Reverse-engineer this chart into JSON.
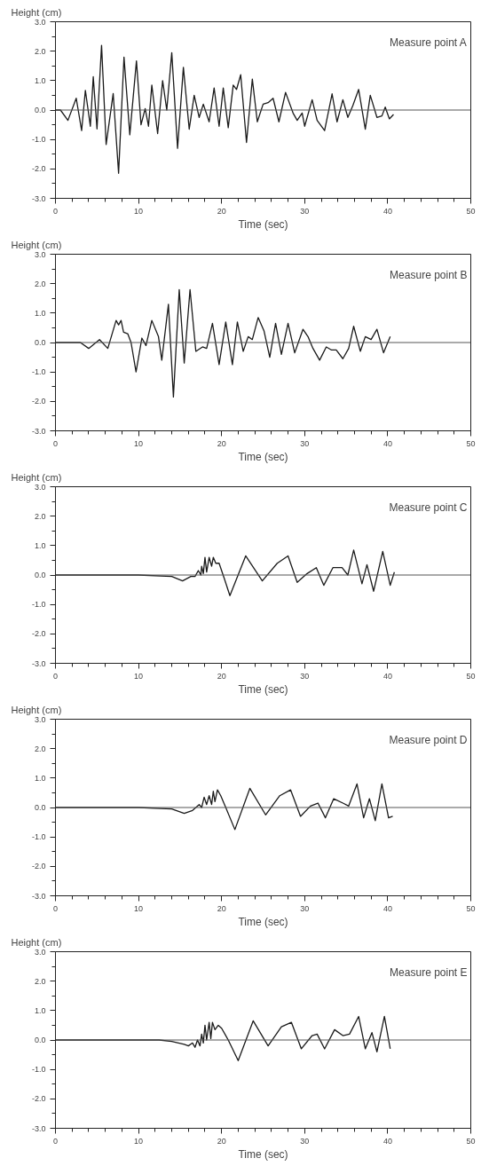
{
  "chart_data": [
    {
      "type": "line",
      "title": "Measure point A",
      "xlabel": "Time (sec)",
      "ylabel": "Height (cm)",
      "xlim": [
        0,
        50
      ],
      "xticks": [
        0,
        10,
        20,
        30,
        40,
        50
      ],
      "ylim": [
        -3,
        3
      ],
      "yticks": [
        {
          "value": -3,
          "label": "-3.0"
        },
        {
          "value": -2,
          "label": "-2.0"
        },
        {
          "value": -1,
          "label": "-1.0"
        },
        {
          "value": 0,
          "label": "0.0"
        },
        {
          "value": 1,
          "label": "1.0"
        },
        {
          "value": 2,
          "label": "2.0"
        },
        {
          "value": 3,
          "label": "3.0"
        }
      ],
      "grid": false,
      "ref_lines": [
        {
          "axis": "y",
          "value": 0,
          "color": "#555555"
        }
      ],
      "series": [
        {
          "color": "#1a1a1a",
          "x": [
            0,
            0.6,
            1.5,
            2.5,
            3.15,
            3.6,
            4.2,
            4.55,
            5.0,
            5.55,
            6.1,
            6.95,
            7.6,
            8.25,
            8.95,
            9.75,
            10.3,
            10.8,
            11.2,
            11.6,
            12.3,
            12.9,
            13.4,
            14.0,
            14.7,
            15.4,
            16.1,
            16.7,
            17.3,
            17.8,
            18.5,
            19.1,
            19.7,
            20.2,
            20.8,
            21.4,
            21.8,
            22.3,
            23.0,
            23.7,
            24.3,
            25.0,
            25.6,
            26.2,
            26.9,
            27.7,
            28.6,
            29.1,
            29.7,
            30.0,
            30.9,
            31.5,
            32.4,
            33.3,
            33.9,
            34.6,
            35.2,
            35.8,
            36.5,
            37.3,
            37.9,
            38.7,
            39.3,
            39.7,
            40.2,
            40.7
          ],
          "values": [
            0,
            0,
            -0.35,
            0.4,
            -0.7,
            0.67,
            -0.55,
            1.13,
            -0.64,
            2.2,
            -1.17,
            0.56,
            -2.15,
            1.8,
            -0.84,
            1.67,
            -0.5,
            0.05,
            -0.55,
            0.85,
            -0.8,
            1.0,
            0.0,
            1.95,
            -1.3,
            1.45,
            -0.65,
            0.5,
            -0.25,
            0.2,
            -0.4,
            0.75,
            -0.55,
            0.75,
            -0.6,
            0.85,
            0.7,
            1.2,
            -1.1,
            1.05,
            -0.4,
            0.2,
            0.25,
            0.4,
            -0.4,
            0.6,
            -0.1,
            -0.35,
            -0.1,
            -0.55,
            0.35,
            -0.35,
            -0.7,
            0.55,
            -0.4,
            0.35,
            -0.25,
            0.15,
            0.7,
            -0.65,
            0.5,
            -0.25,
            -0.2,
            0.1,
            -0.3,
            -0.15
          ]
        }
      ]
    },
    {
      "type": "line",
      "title": "Measure point B",
      "xlabel": "Time (sec)",
      "ylabel": "Height (cm)",
      "xlim": [
        0,
        50
      ],
      "xticks": [
        0,
        10,
        20,
        30,
        40,
        50
      ],
      "ylim": [
        -3,
        3
      ],
      "yticks": [
        {
          "value": -3,
          "label": "-3.0"
        },
        {
          "value": -2,
          "label": "-2.0"
        },
        {
          "value": -1,
          "label": "-1.0"
        },
        {
          "value": 0,
          "label": "0.0"
        },
        {
          "value": 1,
          "label": "1.0"
        },
        {
          "value": 2,
          "label": "2.0"
        },
        {
          "value": 3,
          "label": "3.0"
        }
      ],
      "grid": false,
      "ref_lines": [
        {
          "axis": "y",
          "value": 0,
          "color": "#555555"
        }
      ],
      "series": [
        {
          "color": "#1a1a1a",
          "x": [
            0,
            3,
            4.0,
            5.3,
            6.3,
            7.3,
            7.6,
            7.9,
            8.2,
            8.7,
            9.1,
            9.7,
            10.4,
            10.9,
            11.6,
            12.4,
            12.8,
            13.6,
            14.2,
            14.9,
            15.5,
            16.2,
            16.9,
            17.7,
            18.2,
            18.9,
            19.7,
            20.5,
            21.3,
            21.9,
            22.6,
            23.2,
            23.7,
            24.4,
            25.1,
            25.8,
            26.5,
            27.2,
            28.0,
            28.8,
            29.8,
            30.4,
            31.0,
            31.8,
            32.6,
            33.2,
            33.8,
            34.6,
            35.3,
            35.9,
            36.7,
            37.3,
            38.0,
            38.7,
            39.5,
            40.3
          ],
          "values": [
            0,
            0,
            -0.2,
            0.1,
            -0.2,
            0.75,
            0.6,
            0.75,
            0.35,
            0.3,
            0.0,
            -1.0,
            0.15,
            -0.1,
            0.75,
            0.2,
            -0.6,
            1.3,
            -1.85,
            1.8,
            -0.7,
            1.8,
            -0.3,
            -0.15,
            -0.2,
            0.65,
            -0.75,
            0.7,
            -0.75,
            0.7,
            -0.3,
            0.2,
            0.1,
            0.85,
            0.4,
            -0.5,
            0.65,
            -0.4,
            0.65,
            -0.35,
            0.45,
            0.2,
            -0.2,
            -0.6,
            -0.15,
            -0.25,
            -0.25,
            -0.55,
            -0.2,
            0.55,
            -0.3,
            0.2,
            0.1,
            0.45,
            -0.35,
            0.2
          ]
        }
      ]
    },
    {
      "type": "line",
      "title": "Measure point C",
      "xlabel": "Time (sec)",
      "ylabel": "Height (cm)",
      "xlim": [
        0,
        50
      ],
      "xticks": [
        0,
        10,
        20,
        30,
        40,
        50
      ],
      "ylim": [
        -3,
        3
      ],
      "yticks": [
        {
          "value": -3,
          "label": "-3.0"
        },
        {
          "value": -2,
          "label": "-2.0"
        },
        {
          "value": -1,
          "label": "-1.0"
        },
        {
          "value": 0,
          "label": "0.0"
        },
        {
          "value": 1,
          "label": "1.0"
        },
        {
          "value": 2,
          "label": "2.0"
        },
        {
          "value": 3,
          "label": "3.0"
        }
      ],
      "grid": false,
      "ref_lines": [
        {
          "axis": "y",
          "value": 0,
          "color": "#555555"
        }
      ],
      "series": [
        {
          "color": "#1a1a1a",
          "x": [
            0,
            5,
            10,
            14,
            15.3,
            16.3,
            16.8,
            17.2,
            17.5,
            17.6,
            17.8,
            18.0,
            18.2,
            18.5,
            18.8,
            19.0,
            19.3,
            19.7,
            20.3,
            21.0,
            22.9,
            24.9,
            26.7,
            28.0,
            29.1,
            30.3,
            31.4,
            32.3,
            33.4,
            34.5,
            35.2,
            35.9,
            36.9,
            37.5,
            38.3,
            39.4,
            40.3,
            40.8
          ],
          "values": [
            0,
            0,
            0,
            -0.05,
            -0.2,
            -0.05,
            -0.05,
            0.15,
            0.0,
            0.3,
            0.05,
            0.6,
            0.1,
            0.6,
            0.3,
            0.6,
            0.4,
            0.4,
            -0.1,
            -0.7,
            0.65,
            -0.2,
            0.4,
            0.65,
            -0.25,
            0.05,
            0.25,
            -0.35,
            0.25,
            0.25,
            0.0,
            0.85,
            -0.3,
            0.35,
            -0.55,
            0.8,
            -0.35,
            0.1
          ]
        }
      ]
    },
    {
      "type": "line",
      "title": "Measure point D",
      "xlabel": "Time (sec)",
      "ylabel": "Height (cm)",
      "xlim": [
        0,
        50
      ],
      "xticks": [
        0,
        10,
        20,
        30,
        40,
        50
      ],
      "ylim": [
        -3,
        3
      ],
      "yticks": [
        {
          "value": -3,
          "label": "-3.0"
        },
        {
          "value": -2,
          "label": "-2.0"
        },
        {
          "value": -1,
          "label": "-1.0"
        },
        {
          "value": 0,
          "label": "0.0"
        },
        {
          "value": 1,
          "label": "1.0"
        },
        {
          "value": 2,
          "label": "2.0"
        },
        {
          "value": 3,
          "label": "3.0"
        }
      ],
      "grid": false,
      "ref_lines": [
        {
          "axis": "y",
          "value": 0,
          "color": "#555555"
        }
      ],
      "series": [
        {
          "color": "#1a1a1a",
          "x": [
            0,
            5,
            10,
            14,
            15.5,
            16.5,
            17.3,
            17.6,
            17.9,
            18.2,
            18.5,
            18.8,
            19.0,
            19.2,
            19.5,
            19.9,
            20.5,
            21.6,
            23.4,
            25.3,
            27.0,
            28.3,
            29.5,
            30.7,
            31.6,
            32.5,
            33.5,
            34.6,
            35.3,
            36.3,
            37.1,
            37.8,
            38.5,
            39.3,
            40.1,
            40.6
          ],
          "values": [
            0,
            0,
            0,
            -0.05,
            -0.2,
            -0.1,
            0.1,
            0.0,
            0.35,
            0.1,
            0.4,
            0.1,
            0.55,
            0.2,
            0.6,
            0.4,
            0.0,
            -0.75,
            0.65,
            -0.25,
            0.4,
            0.6,
            -0.3,
            0.05,
            0.15,
            -0.35,
            0.3,
            0.15,
            0.05,
            0.8,
            -0.35,
            0.3,
            -0.45,
            0.8,
            -0.35,
            -0.3
          ]
        }
      ]
    },
    {
      "type": "line",
      "title": "Measure point E",
      "xlabel": "Time (sec)",
      "ylabel": "Height (cm)",
      "xlim": [
        0,
        50
      ],
      "xticks": [
        0,
        10,
        20,
        30,
        40,
        50
      ],
      "ylim": [
        -3,
        3
      ],
      "yticks": [
        {
          "value": -3,
          "label": "-3.0"
        },
        {
          "value": -2,
          "label": "-2.0"
        },
        {
          "value": -1,
          "label": "-1.0"
        },
        {
          "value": 0,
          "label": "0.0"
        },
        {
          "value": 1,
          "label": "1.0"
        },
        {
          "value": 2,
          "label": "2.0"
        },
        {
          "value": 3,
          "label": "3.0"
        }
      ],
      "grid": false,
      "ref_lines": [
        {
          "axis": "y",
          "value": 0,
          "color": "#555555"
        }
      ],
      "series": [
        {
          "color": "#1a1a1a",
          "x": [
            0,
            5,
            10,
            12.5,
            14,
            15.5,
            16.0,
            16.5,
            16.8,
            17.1,
            17.4,
            17.6,
            17.8,
            18.0,
            18.2,
            18.5,
            18.7,
            18.9,
            19.2,
            19.6,
            20.0,
            20.8,
            22.0,
            23.8,
            25.6,
            27.2,
            28.4,
            29.6,
            30.9,
            31.5,
            32.4,
            33.6,
            34.6,
            35.4,
            36.5,
            37.3,
            38.1,
            38.7,
            39.6,
            40.3
          ],
          "values": [
            0,
            0,
            0,
            0.0,
            -0.05,
            -0.15,
            -0.2,
            -0.1,
            -0.25,
            0.0,
            -0.2,
            0.2,
            -0.1,
            0.5,
            0.0,
            0.6,
            0.05,
            0.6,
            0.35,
            0.5,
            0.4,
            0.0,
            -0.7,
            0.65,
            -0.2,
            0.45,
            0.6,
            -0.3,
            0.15,
            0.2,
            -0.3,
            0.35,
            0.15,
            0.2,
            0.8,
            -0.3,
            0.25,
            -0.4,
            0.8,
            -0.3
          ]
        }
      ]
    }
  ]
}
